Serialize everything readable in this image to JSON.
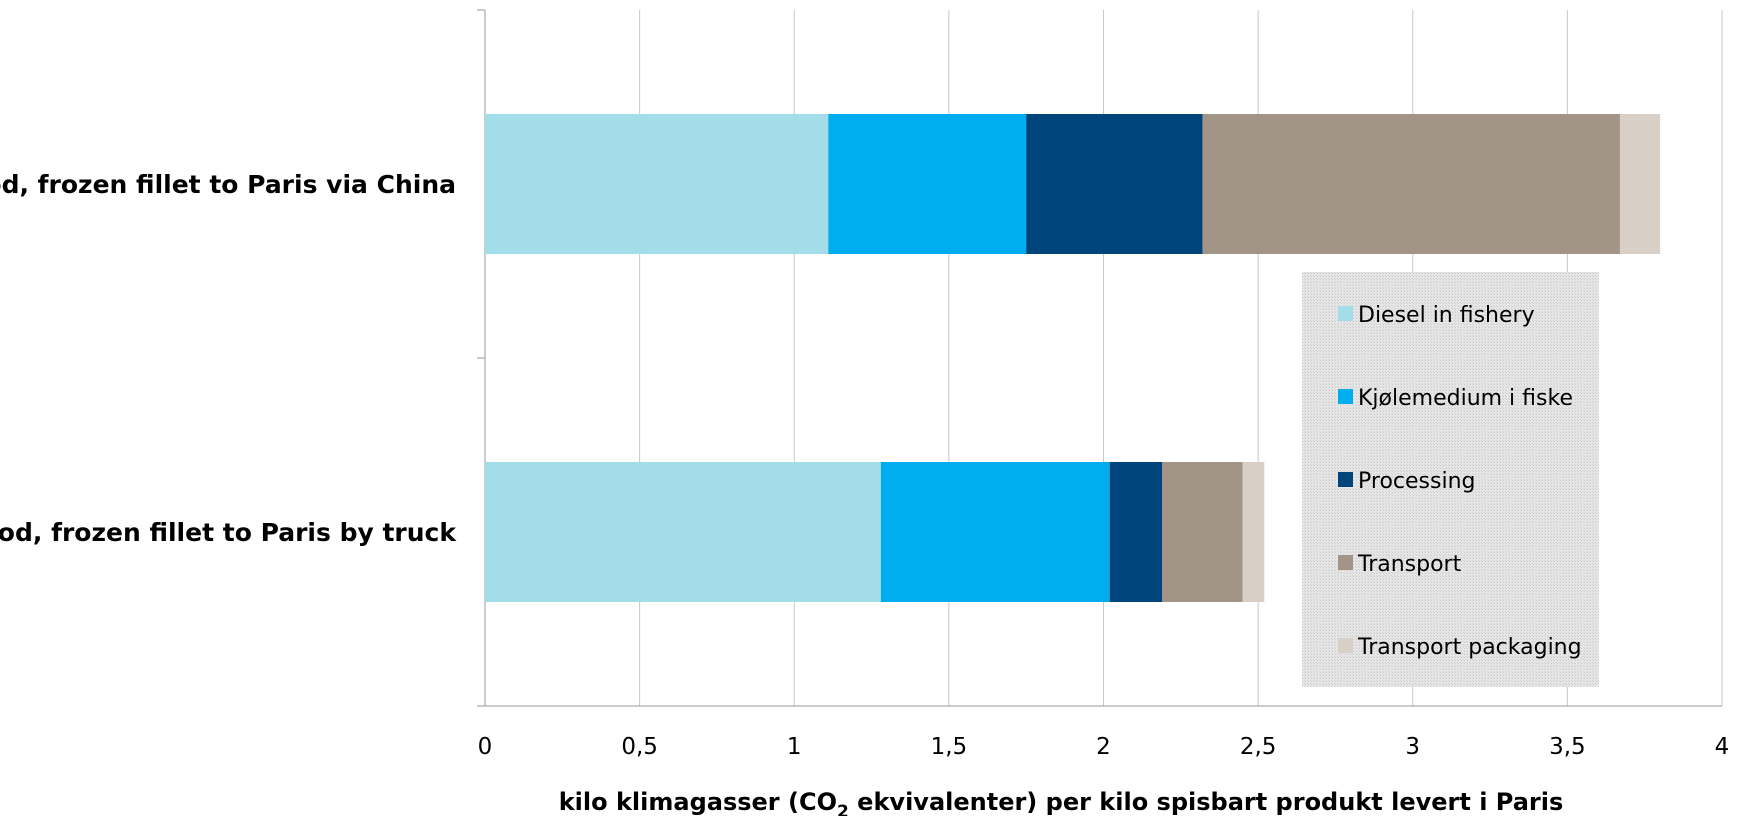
{
  "chart_data": {
    "type": "bar",
    "orientation": "horizontal",
    "stacked": true,
    "categories": [
      "Cod, frozen fillet to Paris via China",
      "Cod, frozen fillet to Paris by truck"
    ],
    "series": [
      {
        "name": "Diesel in fishery",
        "color": "#a3dde9",
        "values": [
          1.11,
          1.28
        ]
      },
      {
        "name": "Kjølemedium i fiske",
        "color": "#00aeef",
        "values": [
          0.64,
          0.74
        ]
      },
      {
        "name": "Processing",
        "color": "#00447c",
        "values": [
          0.57,
          0.17
        ]
      },
      {
        "name": "Transport",
        "color": "#a29587",
        "values": [
          1.35,
          0.26
        ]
      },
      {
        "name": "Transport packaging",
        "color": "#d8cfc7",
        "values": [
          0.13,
          0.07
        ]
      }
    ],
    "xlim": [
      0,
      4
    ],
    "xticks": [
      0,
      0.5,
      1,
      1.5,
      2,
      2.5,
      3,
      3.5,
      4
    ],
    "xtick_labels": [
      "0",
      "0,5",
      "1",
      "1,5",
      "2",
      "2,5",
      "3",
      "3,5",
      "4"
    ],
    "xlabel_parts": {
      "before": "kilo klimagasser (CO",
      "sub": "2",
      "after": " ekvivalenter) per kilo spisbart produkt levert i Paris"
    },
    "ylabel": "",
    "title": "",
    "grid": "vertical",
    "legend_position": "inside-right"
  }
}
